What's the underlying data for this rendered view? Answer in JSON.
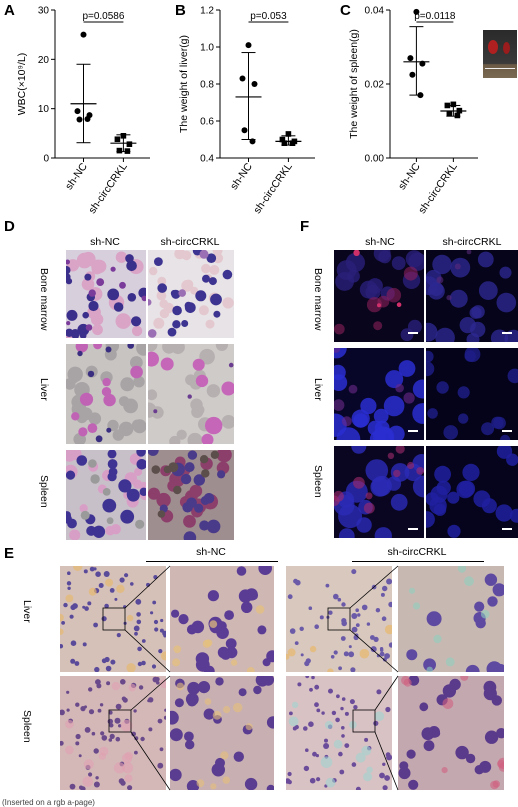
{
  "panels": {
    "a": "A",
    "b": "B",
    "c": "C",
    "d": "D",
    "e": "E",
    "f": "F"
  },
  "chart_data": [
    {
      "type": "scatter",
      "ylabel": "WBC(×10⁹/L)",
      "ylim": [
        0,
        30
      ],
      "yticks": [
        "0",
        "10",
        "20",
        "30"
      ],
      "categories": [
        "sh-NC",
        "sh-circCRKL"
      ],
      "pvalue": "p=0.0586",
      "series": [
        {
          "values": [
            25,
            9.5,
            8.7,
            7.8,
            7.9
          ],
          "mean": 11.0,
          "sd_low": 3.1,
          "sd_high": 19.0
        },
        {
          "values": [
            4.5,
            3.8,
            2.8,
            1.5,
            1.4
          ],
          "mean": 3.0,
          "sd_low": 1.3,
          "sd_high": 4.7
        }
      ]
    },
    {
      "type": "scatter",
      "ylabel": "The weight of liver(g)",
      "ylim": [
        0.4,
        1.2
      ],
      "yticks": [
        "0.4",
        "0.6",
        "0.8",
        "1.0",
        "1.2"
      ],
      "categories": [
        "sh-NC",
        "sh-circCRKL"
      ],
      "pvalue": "p=0.053",
      "series": [
        {
          "values": [
            1.01,
            0.83,
            0.8,
            0.55,
            0.49
          ],
          "mean": 0.73,
          "sd_low": 0.5,
          "sd_high": 0.97
        },
        {
          "values": [
            0.53,
            0.5,
            0.49,
            0.48,
            0.48
          ],
          "mean": 0.49,
          "sd_low": 0.47,
          "sd_high": 0.52
        }
      ]
    },
    {
      "type": "scatter",
      "ylabel": "The weight of spleen(g)",
      "ylim": [
        0,
        0.04
      ],
      "yticks": [
        "0.00",
        "0.02",
        "0.04"
      ],
      "categories": [
        "sh-NC",
        "sh-circCRKL"
      ],
      "pvalue": "p=0.0118",
      "series": [
        {
          "values": [
            0.0395,
            0.027,
            0.0255,
            0.0225,
            0.017
          ],
          "mean": 0.026,
          "sd_low": 0.017,
          "sd_high": 0.0355
        },
        {
          "values": [
            0.0145,
            0.0142,
            0.0128,
            0.012,
            0.0115
          ],
          "mean": 0.0127,
          "sd_low": 0.0113,
          "sd_high": 0.0142
        }
      ]
    }
  ],
  "panel_d": {
    "columns": [
      "sh-NC",
      "sh-circCRKL"
    ],
    "rows": [
      "Bone marrow",
      "Liver",
      "Spleen"
    ]
  },
  "panel_f": {
    "columns": [
      "sh-NC",
      "sh-circCRKL"
    ],
    "rows": [
      "Bone marrow",
      "Liver",
      "Spleen"
    ]
  },
  "panel_e": {
    "groups": [
      "sh-NC",
      "sh-circCRKL"
    ],
    "rows": [
      "Liver",
      "Spleen"
    ]
  },
  "footer": "(Inserted on a rgb a-page)"
}
